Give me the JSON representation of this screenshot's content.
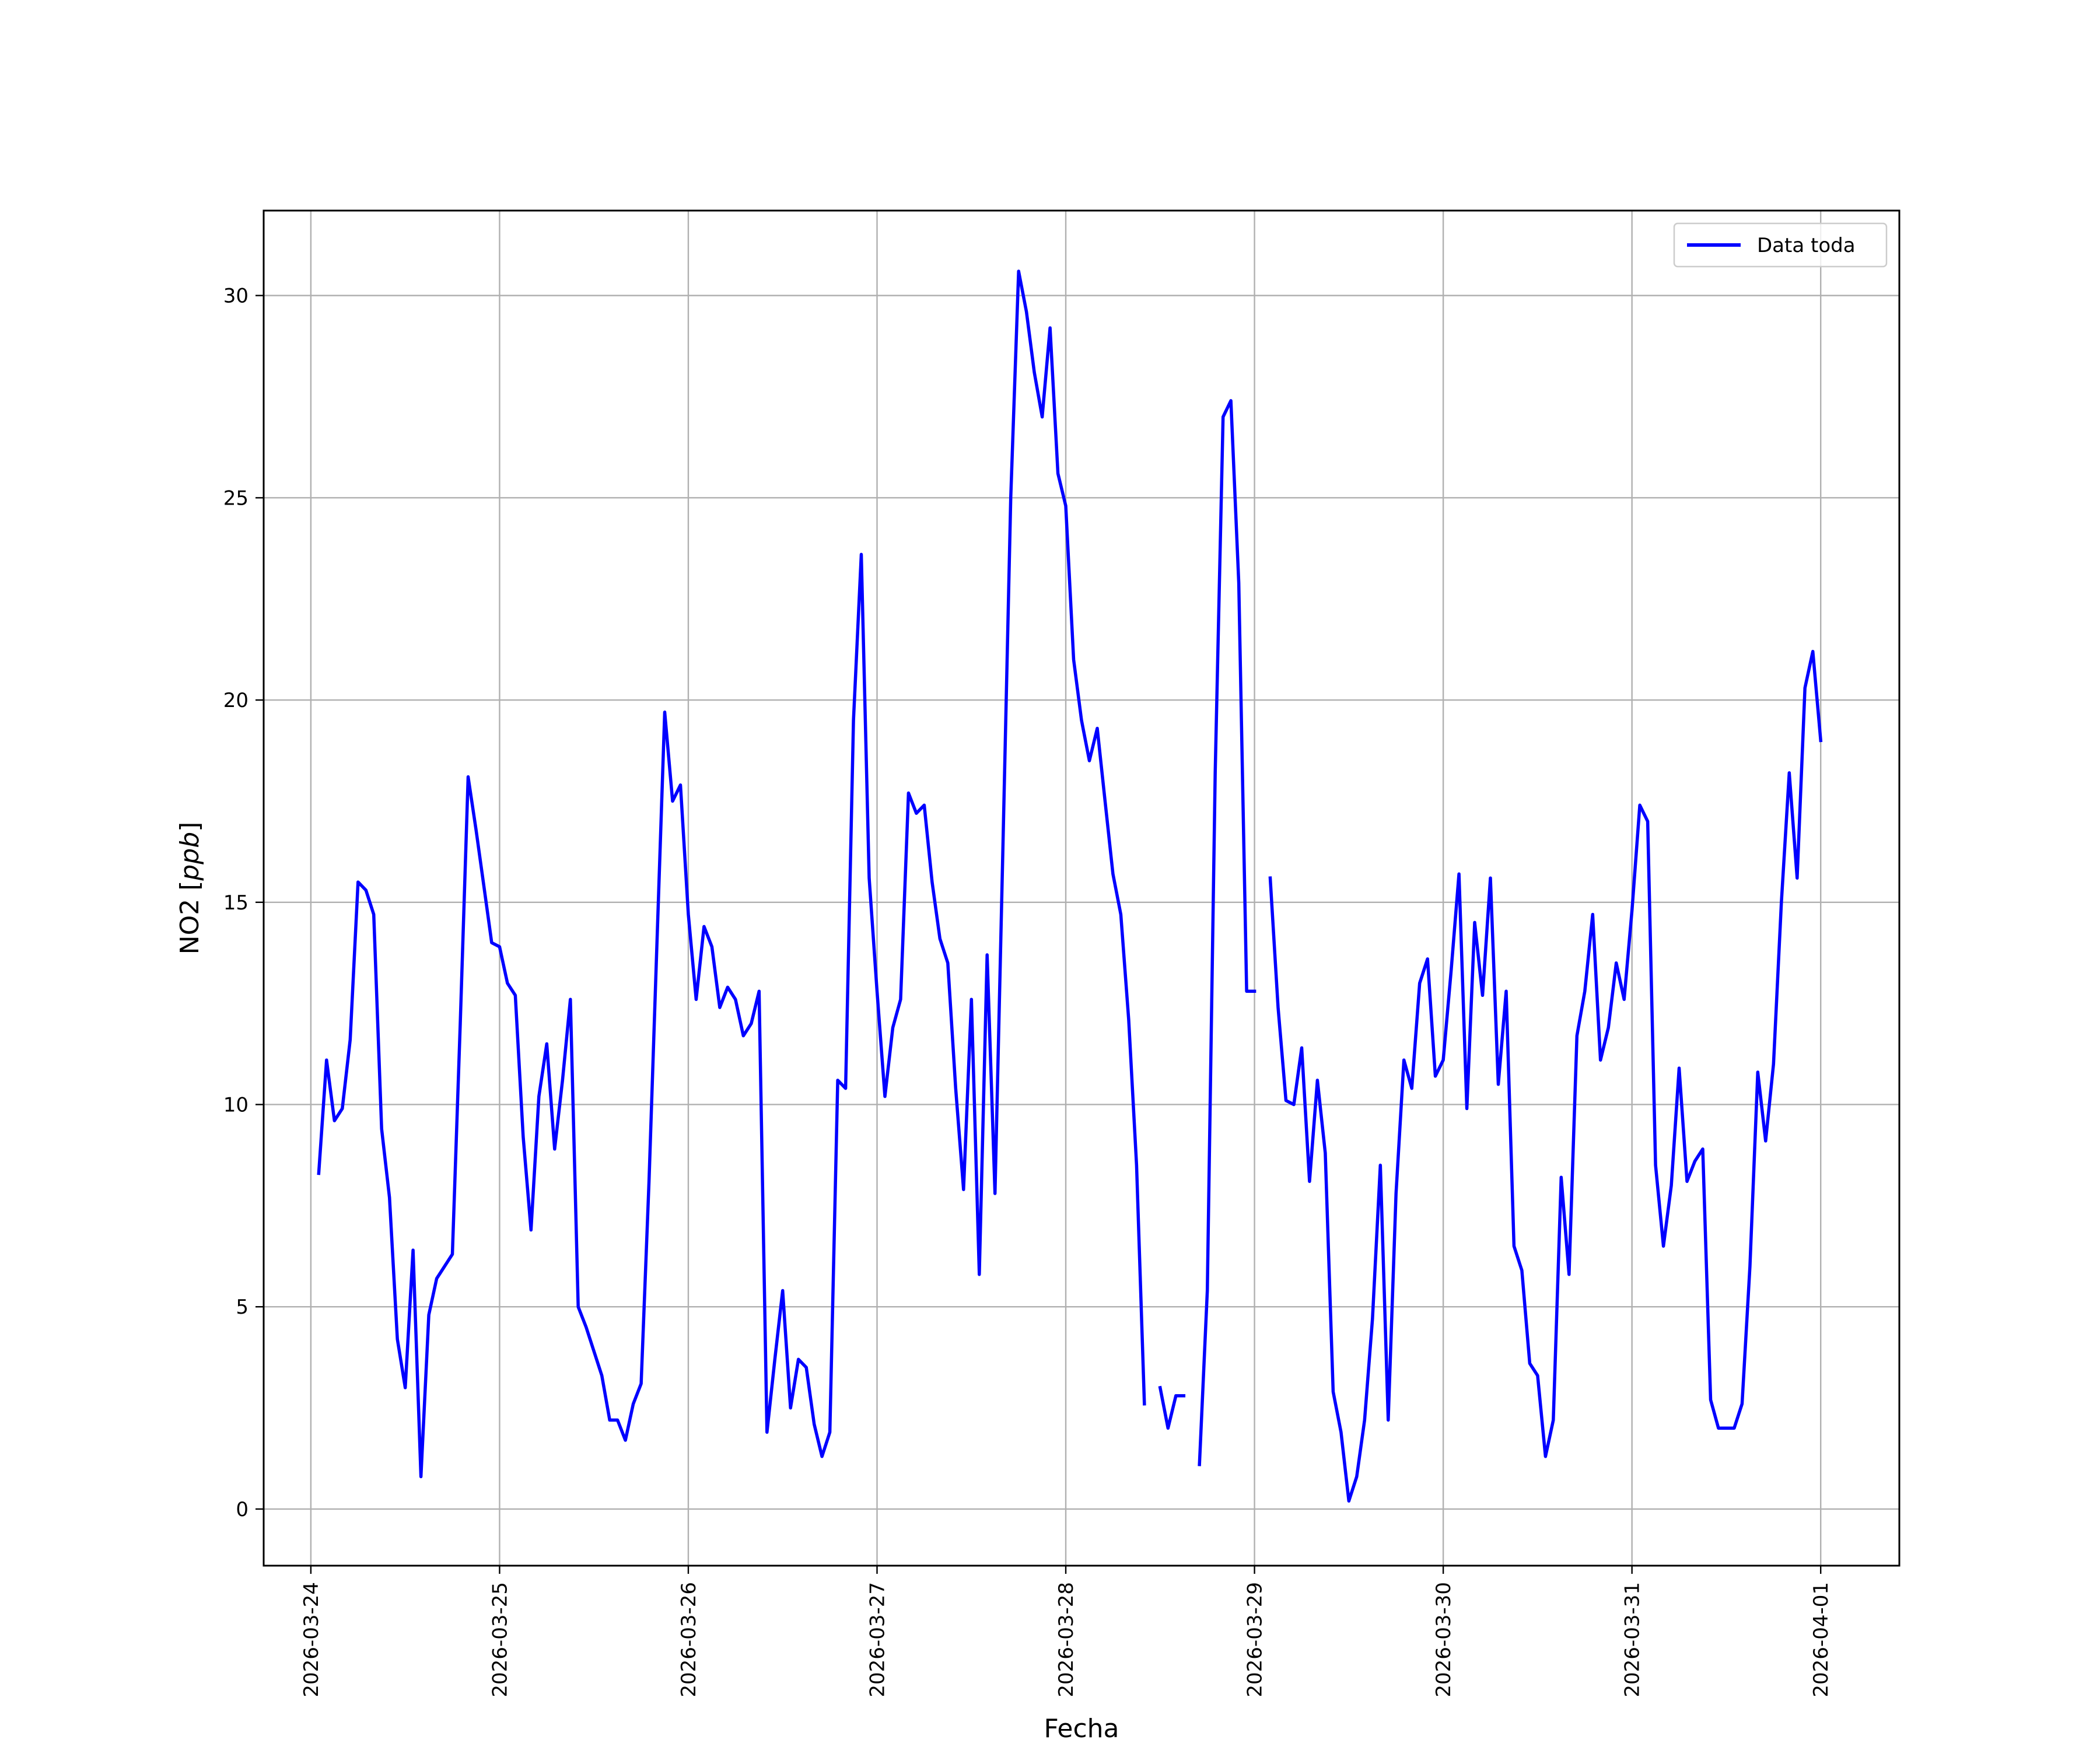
{
  "chart_data": {
    "type": "line",
    "xlabel": "Fecha",
    "ylabel": "NO2 [ppb]",
    "ylim": [
      -1.4,
      32.1
    ],
    "xlim": [
      "2026-03-23 18:00",
      "2026-04-01 10:00"
    ],
    "grid": true,
    "legend_position": "top-right",
    "x_ticks": [
      "2026-03-24",
      "2026-03-25",
      "2026-03-26",
      "2026-03-27",
      "2026-03-28",
      "2026-03-29",
      "2026-03-30",
      "2026-03-31",
      "2026-04-01"
    ],
    "y_ticks": [
      0,
      5,
      10,
      15,
      20,
      25,
      30
    ],
    "series": [
      {
        "name": "Data toda",
        "color": "#0000ff",
        "start": "2026-03-24 01:00",
        "step_hours": 1,
        "values": [
          8.3,
          11.1,
          9.6,
          9.9,
          11.6,
          15.5,
          15.3,
          14.7,
          9.4,
          7.7,
          4.2,
          3.0,
          6.4,
          0.8,
          4.8,
          5.7,
          6.0,
          6.3,
          12.0,
          18.1,
          16.8,
          15.4,
          14.0,
          13.9,
          13.0,
          12.7,
          9.2,
          6.9,
          10.2,
          11.5,
          8.9,
          10.6,
          12.6,
          5.0,
          4.5,
          3.9,
          3.3,
          2.2,
          2.2,
          1.7,
          2.6,
          3.1,
          8.1,
          13.9,
          19.7,
          17.5,
          17.9,
          14.7,
          12.6,
          14.4,
          13.9,
          12.4,
          12.9,
          12.6,
          11.7,
          12.0,
          12.8,
          1.9,
          3.7,
          5.4,
          2.5,
          3.7,
          3.5,
          2.1,
          1.3,
          1.9,
          10.6,
          10.4,
          19.5,
          23.6,
          15.6,
          12.8,
          10.2,
          11.9,
          12.6,
          17.7,
          17.2,
          17.4,
          15.5,
          14.1,
          13.5,
          10.4,
          7.9,
          12.6,
          5.8,
          13.7,
          7.8,
          16.3,
          25.0,
          30.6,
          29.6,
          28.1,
          27.0,
          29.2,
          25.6,
          24.8,
          21.0,
          19.5,
          18.5,
          19.3,
          17.5,
          15.7,
          14.7,
          12.1,
          8.5,
          2.6,
          null,
          3.0,
          2.0,
          2.8,
          2.8,
          null,
          1.1,
          5.4,
          18.2,
          27.0,
          27.4,
          22.9,
          12.8,
          12.8,
          null,
          15.6,
          12.4,
          10.1,
          10.0,
          11.4,
          8.1,
          10.6,
          8.8,
          2.9,
          1.9,
          0.2,
          0.8,
          2.2,
          4.7,
          8.5,
          2.2,
          7.8,
          11.1,
          10.4,
          13.0,
          13.6,
          10.7,
          11.1,
          13.3,
          15.7,
          9.9,
          14.5,
          12.7,
          15.6,
          10.5,
          12.8,
          6.5,
          5.9,
          3.6,
          3.3,
          1.3,
          2.2,
          8.2,
          5.8,
          11.7,
          12.8,
          14.7,
          11.1,
          11.9,
          13.5,
          12.6,
          14.8,
          17.4,
          17.0,
          8.5,
          6.5,
          8.0,
          10.9,
          8.1,
          8.6,
          8.9,
          2.7,
          2.0,
          2.0,
          2.0,
          2.6,
          6.0,
          10.8,
          9.1,
          11.0,
          15.0,
          18.2,
          15.6,
          20.3,
          21.2,
          19.0
        ]
      }
    ]
  }
}
